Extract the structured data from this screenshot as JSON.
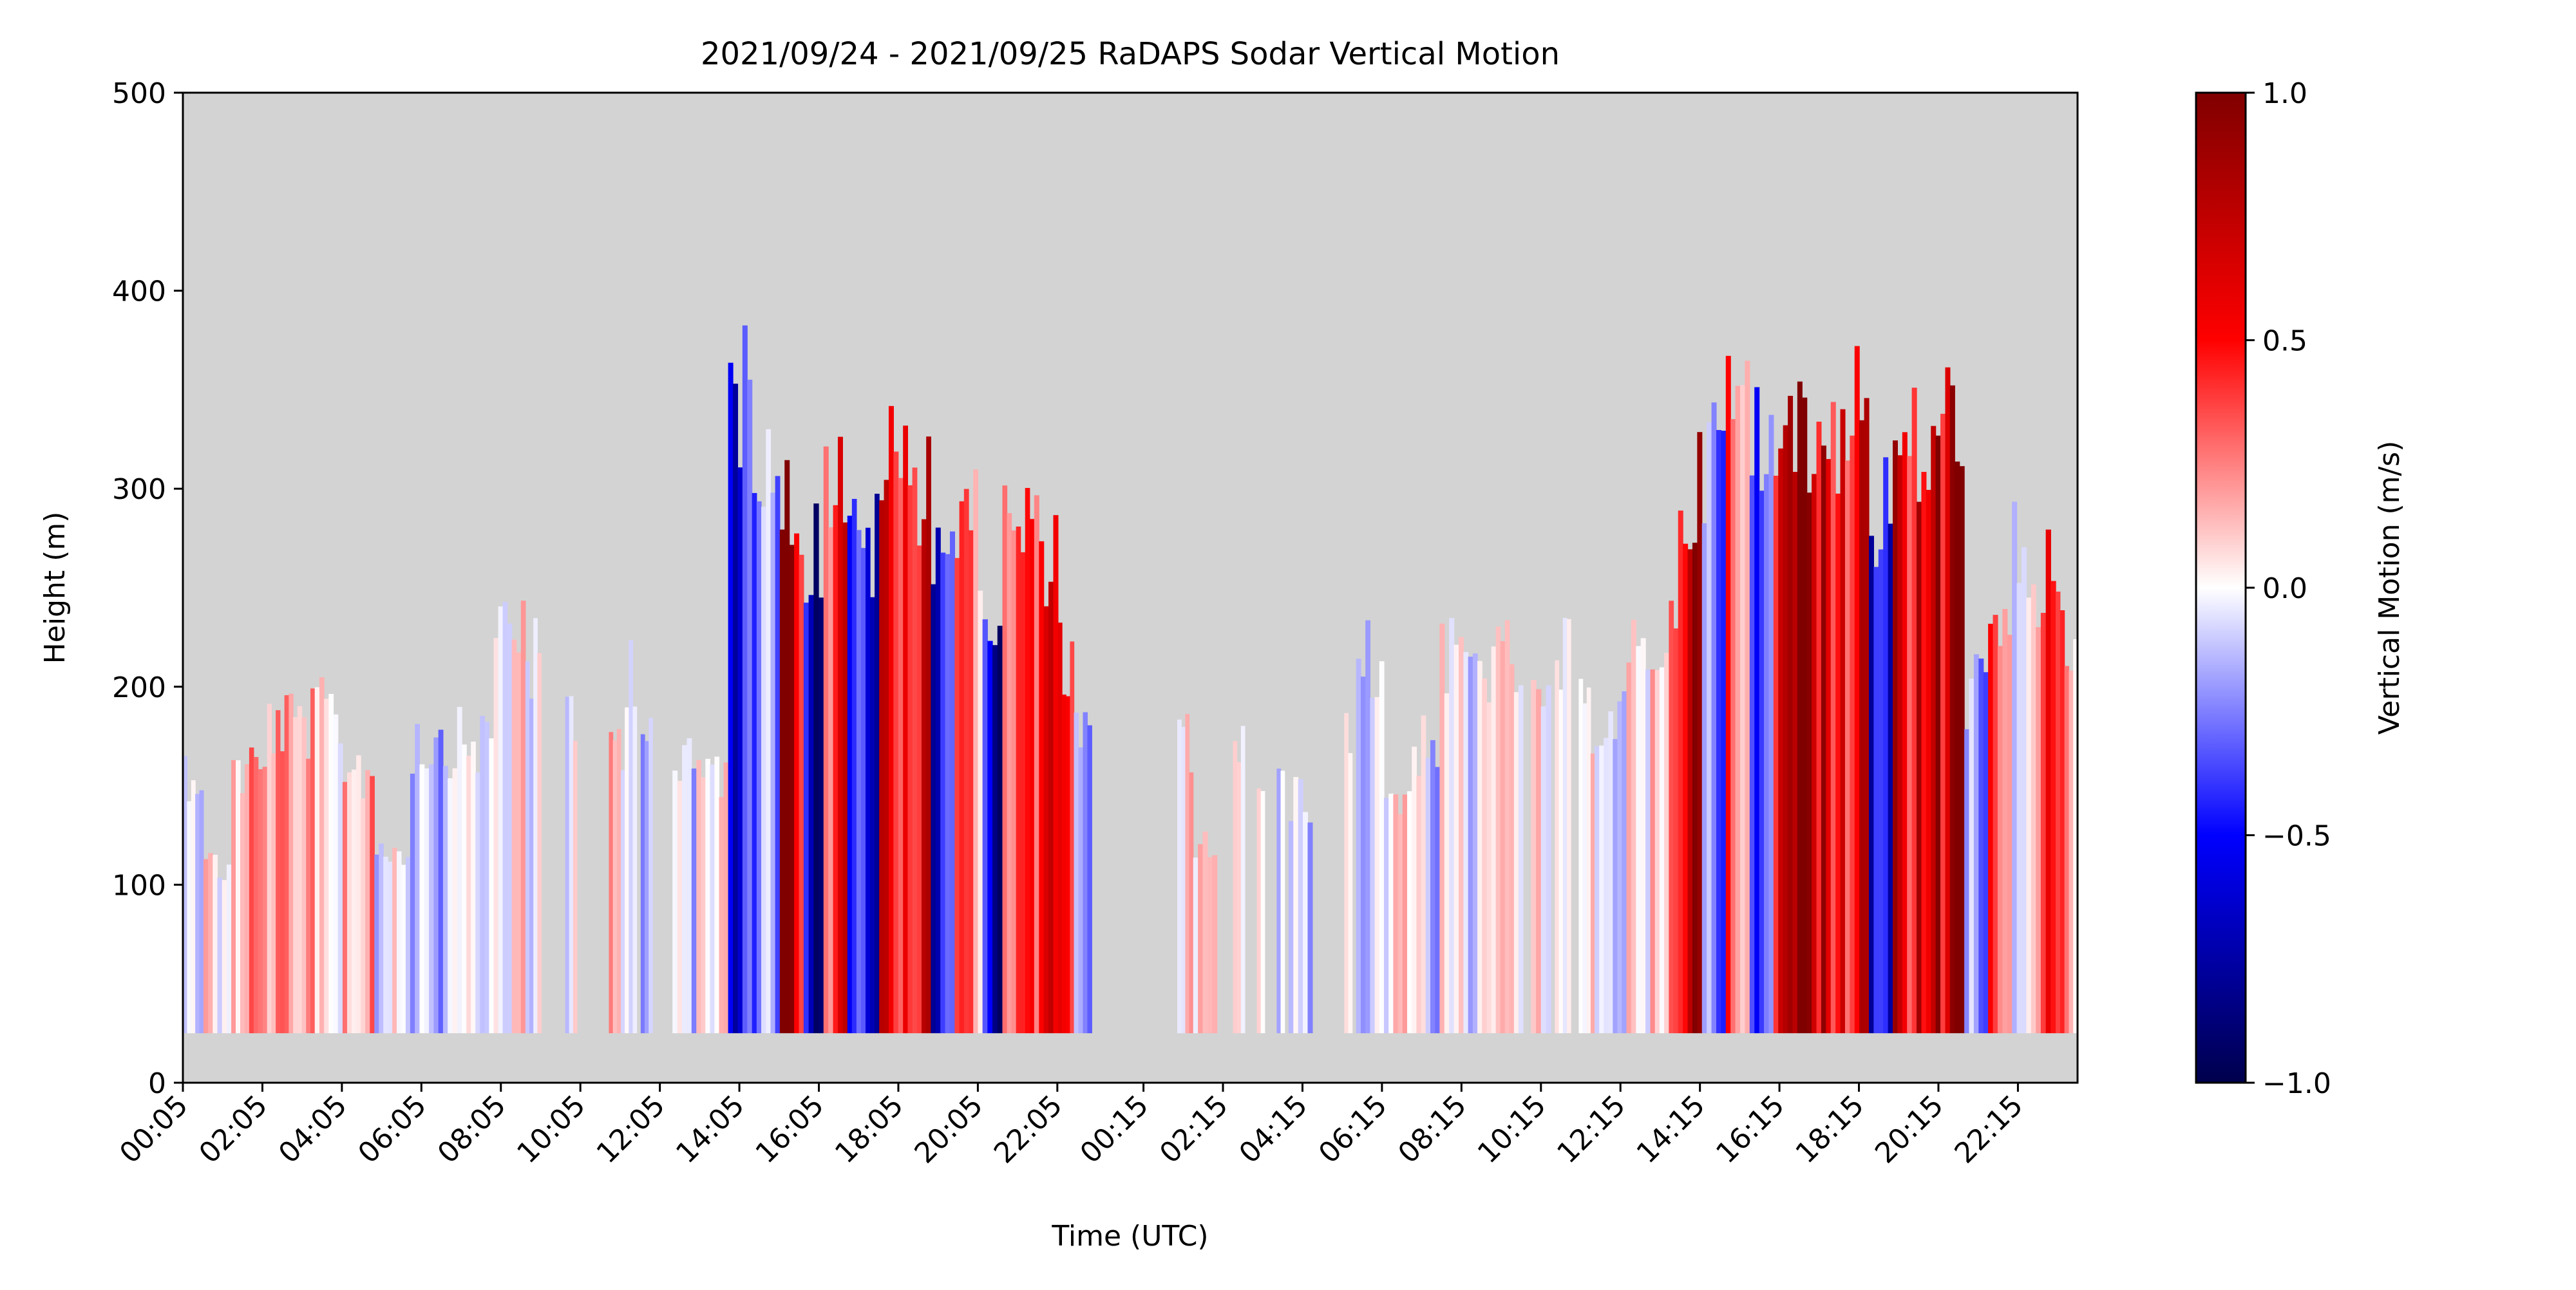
{
  "chart_data": {
    "type": "heatmap",
    "title": "2021/09/24 - 2021/09/25 RaDAPS Sodar Vertical Motion",
    "xlabel": "Time (UTC)",
    "ylabel": "Height (m)",
    "x_range_hours": [
      0.083,
      47.75
    ],
    "x_ticks": [
      {
        "hour": 0.083,
        "label": "00:05"
      },
      {
        "hour": 2.083,
        "label": "02:05"
      },
      {
        "hour": 4.083,
        "label": "04:05"
      },
      {
        "hour": 6.083,
        "label": "06:05"
      },
      {
        "hour": 8.083,
        "label": "08:05"
      },
      {
        "hour": 10.083,
        "label": "10:05"
      },
      {
        "hour": 12.083,
        "label": "12:05"
      },
      {
        "hour": 14.083,
        "label": "14:05"
      },
      {
        "hour": 16.083,
        "label": "16:05"
      },
      {
        "hour": 18.083,
        "label": "18:05"
      },
      {
        "hour": 20.083,
        "label": "20:05"
      },
      {
        "hour": 22.083,
        "label": "22:05"
      },
      {
        "hour": 24.25,
        "label": "00:15"
      },
      {
        "hour": 26.25,
        "label": "02:15"
      },
      {
        "hour": 28.25,
        "label": "04:15"
      },
      {
        "hour": 30.25,
        "label": "06:15"
      },
      {
        "hour": 32.25,
        "label": "08:15"
      },
      {
        "hour": 34.25,
        "label": "10:15"
      },
      {
        "hour": 36.25,
        "label": "12:15"
      },
      {
        "hour": 38.25,
        "label": "14:15"
      },
      {
        "hour": 40.25,
        "label": "16:15"
      },
      {
        "hour": 42.25,
        "label": "18:15"
      },
      {
        "hour": 44.25,
        "label": "20:15"
      },
      {
        "hour": 46.25,
        "label": "22:15"
      }
    ],
    "ylim": [
      0,
      500
    ],
    "y_ticks": [
      0,
      100,
      200,
      300,
      400,
      500
    ],
    "colorbar": {
      "label": "Vertical Motion (m/s)",
      "vmin": -1.0,
      "vmax": 1.0,
      "ticks": [
        {
          "value": 1.0,
          "label": "1.0"
        },
        {
          "value": 0.5,
          "label": "0.5"
        },
        {
          "value": 0.0,
          "label": "0.0"
        },
        {
          "value": -0.5,
          "label": "−0.5"
        },
        {
          "value": -1.0,
          "label": "−1.0"
        }
      ],
      "colormap": "seismic",
      "stops": [
        "#00004c",
        "#0000ff",
        "#ffffff",
        "#ff0000",
        "#800000"
      ]
    },
    "missing_color": "#d3d3d3",
    "min_height_m": 25,
    "segments": [
      {
        "start": 0.083,
        "end": 0.6,
        "top": 175,
        "mean": -0.15
      },
      {
        "start": 0.6,
        "end": 1.3,
        "top": 120,
        "mean": 0.05
      },
      {
        "start": 1.3,
        "end": 2.2,
        "top": 175,
        "mean": 0.2
      },
      {
        "start": 2.2,
        "end": 3.4,
        "top": 200,
        "mean": 0.18
      },
      {
        "start": 3.4,
        "end": 4.1,
        "top": 205,
        "mean": 0.02
      },
      {
        "start": 4.1,
        "end": 4.9,
        "top": 175,
        "mean": 0.15
      },
      {
        "start": 4.9,
        "end": 5.8,
        "top": 130,
        "mean": -0.05
      },
      {
        "start": 5.8,
        "end": 7.1,
        "top": 190,
        "mean": -0.1
      },
      {
        "start": 7.1,
        "end": 7.9,
        "top": 190,
        "mean": -0.05
      },
      {
        "start": 7.9,
        "end": 8.7,
        "top": 260,
        "mean": 0.05
      },
      {
        "start": 8.7,
        "end": 9.1,
        "top": 235,
        "mean": 0.0
      },
      {
        "start": 9.7,
        "end": 10.0,
        "top": 200,
        "mean": -0.05
      },
      {
        "start": 10.8,
        "end": 11.2,
        "top": 190,
        "mean": 0.1
      },
      {
        "start": 11.2,
        "end": 11.5,
        "top": 235,
        "mean": 0.05
      },
      {
        "start": 11.6,
        "end": 11.9,
        "top": 205,
        "mean": -0.1
      },
      {
        "start": 12.4,
        "end": 13.0,
        "top": 175,
        "mean": -0.1
      },
      {
        "start": 13.0,
        "end": 13.8,
        "top": 175,
        "mean": 0.05
      },
      {
        "start": 13.8,
        "end": 14.4,
        "top": 385,
        "mean": -0.45
      },
      {
        "start": 14.4,
        "end": 15.1,
        "top": 365,
        "mean": -0.25
      },
      {
        "start": 15.1,
        "end": 15.7,
        "top": 320,
        "mean": 0.75
      },
      {
        "start": 15.7,
        "end": 16.2,
        "top": 300,
        "mean": -0.6
      },
      {
        "start": 16.2,
        "end": 16.8,
        "top": 340,
        "mean": 0.45
      },
      {
        "start": 16.8,
        "end": 17.6,
        "top": 300,
        "mean": -0.5
      },
      {
        "start": 17.6,
        "end": 18.2,
        "top": 350,
        "mean": 0.55
      },
      {
        "start": 18.2,
        "end": 18.9,
        "top": 340,
        "mean": 0.6
      },
      {
        "start": 18.9,
        "end": 19.5,
        "top": 310,
        "mean": -0.55
      },
      {
        "start": 19.5,
        "end": 20.2,
        "top": 310,
        "mean": 0.3
      },
      {
        "start": 20.2,
        "end": 20.7,
        "top": 265,
        "mean": -0.7
      },
      {
        "start": 20.7,
        "end": 21.5,
        "top": 310,
        "mean": 0.35
      },
      {
        "start": 21.5,
        "end": 22.1,
        "top": 300,
        "mean": 0.45
      },
      {
        "start": 22.1,
        "end": 22.5,
        "top": 235,
        "mean": 0.4
      },
      {
        "start": 22.5,
        "end": 22.95,
        "top": 190,
        "mean": -0.15
      },
      {
        "start": 25.1,
        "end": 25.5,
        "top": 190,
        "mean": 0.15
      },
      {
        "start": 25.5,
        "end": 26.1,
        "top": 130,
        "mean": 0.1
      },
      {
        "start": 26.5,
        "end": 26.8,
        "top": 190,
        "mean": 0.05
      },
      {
        "start": 27.1,
        "end": 27.3,
        "top": 160,
        "mean": 0.1
      },
      {
        "start": 27.6,
        "end": 27.8,
        "top": 160,
        "mean": 0.0
      },
      {
        "start": 27.9,
        "end": 28.5,
        "top": 160,
        "mean": -0.15
      },
      {
        "start": 29.3,
        "end": 29.5,
        "top": 190,
        "mean": 0.0
      },
      {
        "start": 29.6,
        "end": 30.3,
        "top": 235,
        "mean": -0.1
      },
      {
        "start": 30.3,
        "end": 31.0,
        "top": 160,
        "mean": 0.05
      },
      {
        "start": 31.0,
        "end": 31.7,
        "top": 190,
        "mean": -0.1
      },
      {
        "start": 31.7,
        "end": 32.3,
        "top": 235,
        "mean": 0.1
      },
      {
        "start": 32.3,
        "end": 33.0,
        "top": 235,
        "mean": -0.05
      },
      {
        "start": 33.0,
        "end": 33.8,
        "top": 235,
        "mean": 0.05
      },
      {
        "start": 34.0,
        "end": 34.5,
        "top": 205,
        "mean": 0.0
      },
      {
        "start": 34.6,
        "end": 35.0,
        "top": 235,
        "mean": 0.05
      },
      {
        "start": 35.2,
        "end": 35.6,
        "top": 205,
        "mean": 0.1
      },
      {
        "start": 35.6,
        "end": 36.4,
        "top": 205,
        "mean": -0.1
      },
      {
        "start": 36.4,
        "end": 37.0,
        "top": 235,
        "mean": 0.05
      },
      {
        "start": 37.0,
        "end": 37.7,
        "top": 250,
        "mean": 0.2
      },
      {
        "start": 37.7,
        "end": 38.3,
        "top": 330,
        "mean": 0.65
      },
      {
        "start": 38.3,
        "end": 38.9,
        "top": 355,
        "mean": -0.35
      },
      {
        "start": 38.9,
        "end": 39.5,
        "top": 385,
        "mean": 0.3
      },
      {
        "start": 39.5,
        "end": 40.1,
        "top": 360,
        "mean": -0.3
      },
      {
        "start": 40.1,
        "end": 40.7,
        "top": 385,
        "mean": 0.6
      },
      {
        "start": 40.7,
        "end": 41.3,
        "top": 355,
        "mean": 0.8
      },
      {
        "start": 41.3,
        "end": 41.9,
        "top": 370,
        "mean": 0.7
      },
      {
        "start": 41.9,
        "end": 42.5,
        "top": 385,
        "mean": 0.55
      },
      {
        "start": 42.5,
        "end": 43.1,
        "top": 320,
        "mean": -0.65
      },
      {
        "start": 43.1,
        "end": 43.7,
        "top": 355,
        "mean": 0.6
      },
      {
        "start": 43.7,
        "end": 44.3,
        "top": 355,
        "mean": 0.85
      },
      {
        "start": 44.3,
        "end": 44.9,
        "top": 370,
        "mean": 0.75
      },
      {
        "start": 44.9,
        "end": 45.5,
        "top": 220,
        "mean": -0.3
      },
      {
        "start": 45.5,
        "end": 46.1,
        "top": 250,
        "mean": 0.3
      },
      {
        "start": 46.1,
        "end": 46.7,
        "top": 295,
        "mean": -0.05
      },
      {
        "start": 46.7,
        "end": 47.2,
        "top": 280,
        "mean": 0.35
      },
      {
        "start": 47.2,
        "end": 47.75,
        "top": 250,
        "mean": 0.25
      }
    ]
  }
}
